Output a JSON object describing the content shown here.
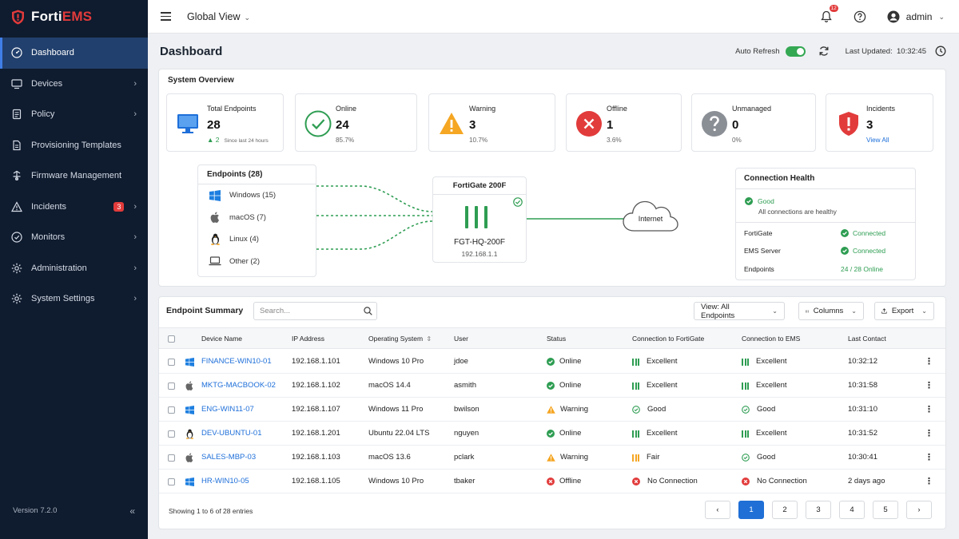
{
  "brand": {
    "prefix": "Forti",
    "suffix": "EMS"
  },
  "sidebar": {
    "items": [
      {
        "label": "Dashboard",
        "icon": "dashboard-icon",
        "active": true,
        "chevron": false
      },
      {
        "label": "Devices",
        "icon": "devices-icon",
        "chevron": true
      },
      {
        "label": "Policy",
        "icon": "policy-icon",
        "chevron": true
      },
      {
        "label": "Provisioning Templates",
        "icon": "document-icon",
        "chevron": false
      },
      {
        "label": "Firmware Management",
        "icon": "firmware-icon",
        "chevron": false
      },
      {
        "label": "Incidents",
        "icon": "warning-icon",
        "chevron": true,
        "badge": "3"
      },
      {
        "label": "Monitors",
        "icon": "monitor-icon",
        "chevron": true
      },
      {
        "label": "Administration",
        "icon": "admin-gear-icon",
        "chevron": true
      },
      {
        "label": "System Settings",
        "icon": "settings-gear-icon",
        "chevron": true
      }
    ],
    "version": "Version 7.2.0",
    "collapse_glyph": "«"
  },
  "topbar": {
    "scope": "Global View",
    "notification_count": "12",
    "user": "admin"
  },
  "page": {
    "title": "Dashboard",
    "auto_refresh_label": "Auto Refresh",
    "auto_refresh_on": true,
    "last_updated_label": "Last Updated:",
    "last_updated_time": "10:32:45"
  },
  "overview": {
    "title": "System Overview",
    "stats": [
      {
        "label": "Total Endpoints",
        "value": "28",
        "delta": "▲ 2",
        "delta_note": "Since last 24 hours",
        "icon": "monitor-icon"
      },
      {
        "label": "Online",
        "value": "24",
        "sub": "85.7%",
        "icon": "check-circle-icon"
      },
      {
        "label": "Warning",
        "value": "3",
        "sub": "10.7%",
        "icon": "warning-triangle-icon"
      },
      {
        "label": "Offline",
        "value": "1",
        "sub": "3.6%",
        "icon": "x-circle-icon"
      },
      {
        "label": "Unmanaged",
        "value": "0",
        "sub": "0%",
        "icon": "question-circle-icon"
      },
      {
        "label": "Incidents",
        "value": "3",
        "sub": "View All",
        "icon": "shield-alert-icon"
      }
    ],
    "endpoints": {
      "title": "Endpoints (28)",
      "os": [
        {
          "label": "Windows (15)",
          "icon": "windows-icon"
        },
        {
          "label": "macOS (7)",
          "icon": "apple-icon"
        },
        {
          "label": "Linux (4)",
          "icon": "linux-icon"
        },
        {
          "label": "Other (2)",
          "icon": "laptop-icon"
        }
      ]
    },
    "fortigate": {
      "title": "FortiGate 200F",
      "name": "FGT-HQ-200F",
      "ip": "192.168.1.1"
    },
    "internet_label": "Internet",
    "health": {
      "title": "Connection Health",
      "status": "Good",
      "status_note": "All connections are healthy",
      "rows": [
        {
          "key": "FortiGate",
          "value": "Connected",
          "icon": true
        },
        {
          "key": "EMS Server",
          "value": "Connected",
          "icon": true
        },
        {
          "key": "Endpoints",
          "value": "24 / 28 Online",
          "icon": false
        }
      ]
    }
  },
  "summary": {
    "title": "Endpoint Summary",
    "search_placeholder": "Search...",
    "view_btn": "View: All Endpoints",
    "columns_btn": "Columns",
    "export_btn": "Export",
    "headers": [
      "Device Name",
      "IP Address",
      "Operating System",
      "User",
      "Status",
      "Connection to FortiGate",
      "Connection to EMS",
      "Last Contact"
    ],
    "sort_glyph": "⇕",
    "rows": [
      {
        "os_icon": "windows-icon",
        "device": "FINANCE-WIN10-01",
        "ip": "192.168.1.101",
        "os": "Windows 10 Pro",
        "user": "jdoe",
        "status": "Online",
        "status_type": "online",
        "fg": "Excellent",
        "fg_type": "excellent",
        "ems": "Excellent",
        "ems_type": "excellent",
        "last": "10:32:12"
      },
      {
        "os_icon": "apple-icon",
        "device": "MKTG-MACBOOK-02",
        "ip": "192.168.1.102",
        "os": "macOS 14.4",
        "user": "asmith",
        "status": "Online",
        "status_type": "online",
        "fg": "Excellent",
        "fg_type": "excellent",
        "ems": "Excellent",
        "ems_type": "excellent",
        "last": "10:31:58"
      },
      {
        "os_icon": "windows-icon",
        "device": "ENG-WIN11-07",
        "ip": "192.168.1.107",
        "os": "Windows 11 Pro",
        "user": "bwilson",
        "status": "Warning",
        "status_type": "warning",
        "fg": "Good",
        "fg_type": "good",
        "ems": "Good",
        "ems_type": "good",
        "last": "10:31:10"
      },
      {
        "os_icon": "linux-icon",
        "device": "DEV-UBUNTU-01",
        "ip": "192.168.1.201",
        "os": "Ubuntu 22.04 LTS",
        "user": "nguyen",
        "status": "Online",
        "status_type": "online",
        "fg": "Excellent",
        "fg_type": "excellent",
        "ems": "Excellent",
        "ems_type": "excellent",
        "last": "10:31:52"
      },
      {
        "os_icon": "apple-icon",
        "device": "SALES-MBP-03",
        "ip": "192.168.1.103",
        "os": "macOS 13.6",
        "user": "pclark",
        "status": "Warning",
        "status_type": "warning",
        "fg": "Fair",
        "fg_type": "fair",
        "ems": "Good",
        "ems_type": "good",
        "last": "10:30:41"
      },
      {
        "os_icon": "windows-icon",
        "device": "HR-WIN10-05",
        "ip": "192.168.1.105",
        "os": "Windows 10 Pro",
        "user": "tbaker",
        "status": "Offline",
        "status_type": "offline",
        "fg": "No Connection",
        "fg_type": "none",
        "ems": "No Connection",
        "ems_type": "none",
        "last": "2 days ago"
      }
    ],
    "showing": "Showing 1 to 6 of 28 entries",
    "pages": [
      "1",
      "2",
      "3",
      "4",
      "5"
    ],
    "current_page": "1",
    "prev_glyph": "‹",
    "next_glyph": "›"
  },
  "colors": {
    "green": "#2e9d52",
    "amber": "#f5a623",
    "red": "#e23b3b",
    "blue": "#1e6fd9",
    "sidebar": "#0f1b2e",
    "active_nav": "#22406d"
  }
}
